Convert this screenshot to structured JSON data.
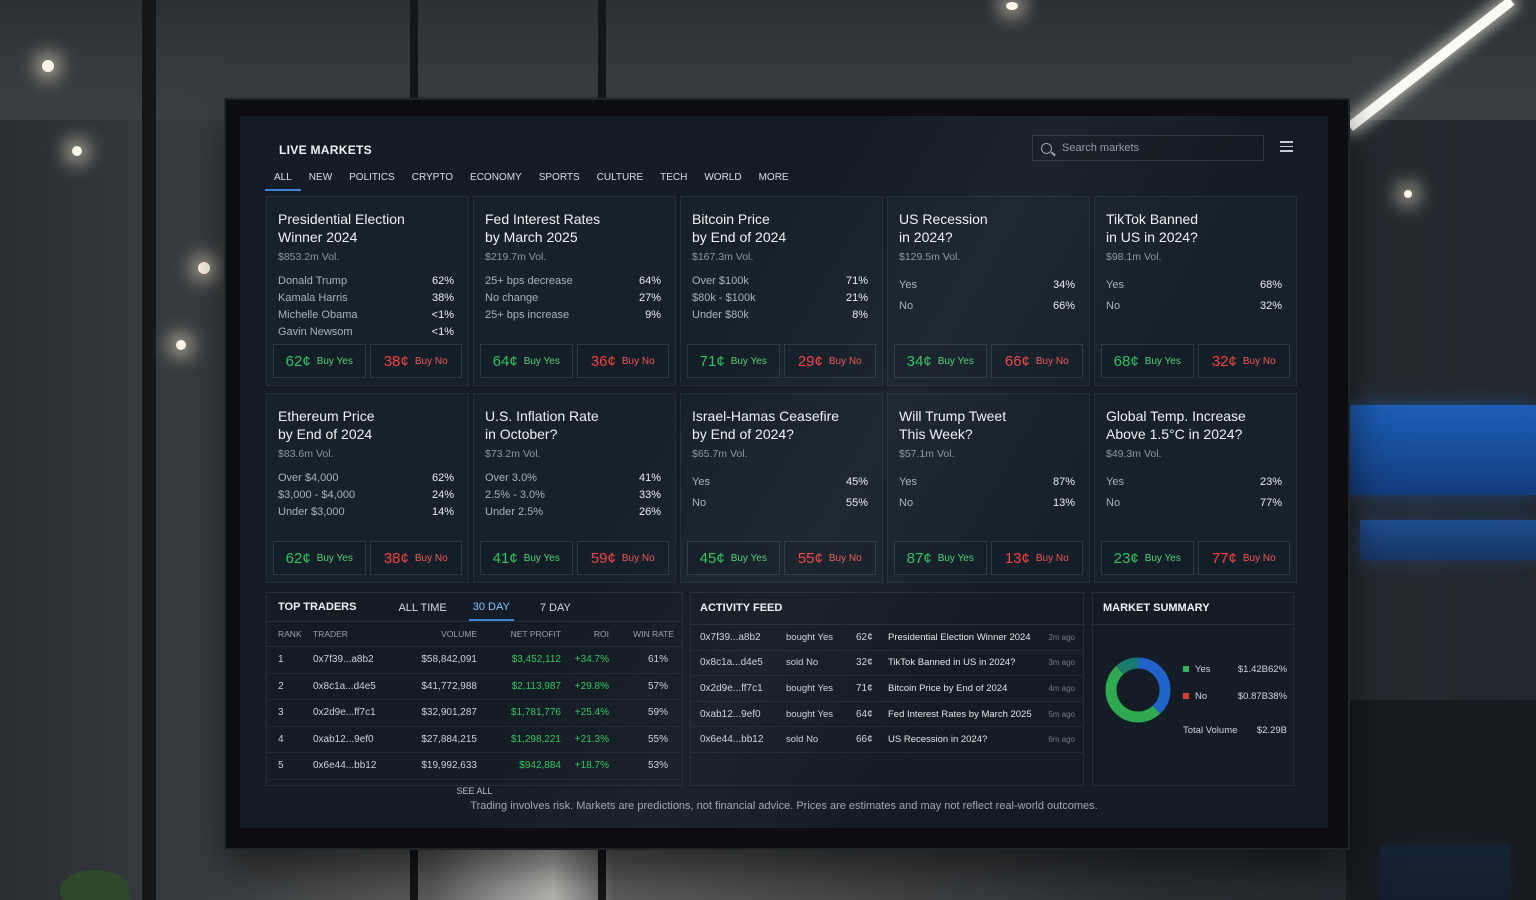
{
  "header": {
    "title": "LIVE MARKETS",
    "search_placeholder": "Search markets",
    "tabs": [
      "ALL",
      "NEW",
      "POLITICS",
      "CRYPTO",
      "ECONOMY",
      "SPORTS",
      "CULTURE",
      "TECH",
      "WORLD",
      "MORE"
    ],
    "active_tab": "ALL"
  },
  "markets": [
    {
      "title_l1": "Presidential Election",
      "title_l2": "Winner 2024",
      "volume": "$853.2m Vol.",
      "outcomes": [
        {
          "name": "Donald Trump",
          "pct": "62%"
        },
        {
          "name": "Kamala Harris",
          "pct": "38%"
        },
        {
          "name": "Michelle Obama",
          "pct": "<1%"
        },
        {
          "name": "Gavin Newsom",
          "pct": "<1%"
        }
      ],
      "yes_price": "62¢",
      "no_price": "38¢"
    },
    {
      "title_l1": "Fed Interest Rates",
      "title_l2": "by March 2025",
      "volume": "$219.7m Vol.",
      "outcomes": [
        {
          "name": "25+ bps decrease",
          "pct": "64%"
        },
        {
          "name": "No change",
          "pct": "27%"
        },
        {
          "name": "25+ bps increase",
          "pct": "9%"
        }
      ],
      "yes_price": "64¢",
      "no_price": "36¢"
    },
    {
      "title_l1": "Bitcoin Price",
      "title_l2": "by End of 2024",
      "volume": "$167.3m Vol.",
      "outcomes": [
        {
          "name": "Over $100k",
          "pct": "71%"
        },
        {
          "name": "$80k - $100k",
          "pct": "21%"
        },
        {
          "name": "Under $80k",
          "pct": "8%"
        }
      ],
      "yes_price": "71¢",
      "no_price": "29¢"
    },
    {
      "title_l1": "US Recession",
      "title_l2": "in 2024?",
      "volume": "$129.5m Vol.",
      "outcomes": [
        {
          "name": "Yes",
          "pct": "34%"
        },
        {
          "name": "No",
          "pct": "66%"
        }
      ],
      "yes_price": "34¢",
      "no_price": "66¢"
    },
    {
      "title_l1": "TikTok Banned",
      "title_l2": "in US in 2024?",
      "volume": "$98.1m Vol.",
      "outcomes": [
        {
          "name": "Yes",
          "pct": "68%"
        },
        {
          "name": "No",
          "pct": "32%"
        }
      ],
      "yes_price": "68¢",
      "no_price": "32¢"
    },
    {
      "title_l1": "Ethereum Price",
      "title_l2": "by End of 2024",
      "volume": "$83.6m Vol.",
      "outcomes": [
        {
          "name": "Over $4,000",
          "pct": "62%"
        },
        {
          "name": "$3,000 - $4,000",
          "pct": "24%"
        },
        {
          "name": "Under $3,000",
          "pct": "14%"
        }
      ],
      "yes_price": "62¢",
      "no_price": "38¢"
    },
    {
      "title_l1": "U.S. Inflation Rate",
      "title_l2": "in October?",
      "volume": "$73.2m Vol.",
      "outcomes": [
        {
          "name": "Over 3.0%",
          "pct": "41%"
        },
        {
          "name": "2.5% - 3.0%",
          "pct": "33%"
        },
        {
          "name": "Under 2.5%",
          "pct": "26%"
        }
      ],
      "yes_price": "41¢",
      "no_price": "59¢"
    },
    {
      "title_l1": "Israel-Hamas Ceasefire",
      "title_l2": "by End of 2024?",
      "volume": "$65.7m Vol.",
      "outcomes": [
        {
          "name": "Yes",
          "pct": "45%"
        },
        {
          "name": "No",
          "pct": "55%"
        }
      ],
      "yes_price": "45¢",
      "no_price": "55¢"
    },
    {
      "title_l1": "Will Trump Tweet",
      "title_l2": "This Week?",
      "volume": "$57.1m Vol.",
      "outcomes": [
        {
          "name": "Yes",
          "pct": "87%"
        },
        {
          "name": "No",
          "pct": "13%"
        }
      ],
      "yes_price": "87¢",
      "no_price": "13¢"
    },
    {
      "title_l1": "Global Temp. Increase",
      "title_l2": "Above 1.5°C in 2024?",
      "volume": "$49.3m Vol.",
      "outcomes": [
        {
          "name": "Yes",
          "pct": "23%"
        },
        {
          "name": "No",
          "pct": "77%"
        }
      ],
      "yes_price": "23¢",
      "no_price": "77¢"
    }
  ],
  "buttons": {
    "yes_label": "Buy Yes",
    "no_label": "Buy No"
  },
  "traders": {
    "title": "TOP TRADERS",
    "tabs": [
      "ALL TIME",
      "30 DAY",
      "7 DAY"
    ],
    "active_tab": "30 DAY",
    "columns": [
      "RANK",
      "TRADER",
      "VOLUME",
      "NET PROFIT",
      "ROI",
      "WIN RATE"
    ],
    "rows": [
      {
        "rank": "1",
        "trader": "0x7f39...a8b2",
        "volume": "$58,842,091",
        "profit": "$3,452,112",
        "roi": "+34.7%",
        "win": "61%"
      },
      {
        "rank": "2",
        "trader": "0x8c1a...d4e5",
        "volume": "$41,772,988",
        "profit": "$2,113,987",
        "roi": "+29.8%",
        "win": "57%"
      },
      {
        "rank": "3",
        "trader": "0x2d9e...ff7c1",
        "volume": "$32,901,287",
        "profit": "$1,781,776",
        "roi": "+25.4%",
        "win": "59%"
      },
      {
        "rank": "4",
        "trader": "0xab12...9ef0",
        "volume": "$27,884,215",
        "profit": "$1,298,221",
        "roi": "+21.3%",
        "win": "55%"
      },
      {
        "rank": "5",
        "trader": "0x6e44...bb12",
        "volume": "$19,992,633",
        "profit": "$942,884",
        "roi": "+18.7%",
        "win": "53%"
      }
    ],
    "see_all": "SEE ALL"
  },
  "feed": {
    "title": "ACTIVITY FEED",
    "rows": [
      {
        "addr": "0x7f39...a8b2",
        "action": "bought Yes",
        "price": "62¢",
        "market": "Presidential Election Winner 2024",
        "ago": "2m ago"
      },
      {
        "addr": "0x8c1a...d4e5",
        "action": "sold No",
        "price": "32¢",
        "market": "TikTok Banned in US in 2024?",
        "ago": "3m ago"
      },
      {
        "addr": "0x2d9e...ff7c1",
        "action": "bought Yes",
        "price": "71¢",
        "market": "Bitcoin Price by End of 2024",
        "ago": "4m ago"
      },
      {
        "addr": "0xab12...9ef0",
        "action": "bought Yes",
        "price": "64¢",
        "market": "Fed Interest Rates by March 2025",
        "ago": "5m ago"
      },
      {
        "addr": "0x6e44...bb12",
        "action": "sold No",
        "price": "66¢",
        "market": "US Recession in 2024?",
        "ago": "6m ago"
      }
    ]
  },
  "summary": {
    "title": "MARKET SUMMARY",
    "items": [
      {
        "name": "Yes",
        "value": "$1.42B",
        "pct": "62%",
        "share": 0.62,
        "color": "#2fb35a"
      },
      {
        "name": "No",
        "value": "$0.87B",
        "pct": "38%",
        "share": 0.38,
        "color": "#d93c3c"
      }
    ],
    "total_label": "Total Volume",
    "total_value": "$2.29B",
    "donut_colors": [
      "#2fa84f",
      "#1f63c8",
      "#1c7a6e"
    ]
  },
  "disclaimer": "Trading involves risk. Markets are predictions, not financial advice. Prices are estimates and may not reflect real-world outcomes.",
  "colors": {
    "accent": "#3f82d8",
    "yes": "#31c25c",
    "no": "#ef4343",
    "panel": "#16212c",
    "screen": "#131c26"
  }
}
